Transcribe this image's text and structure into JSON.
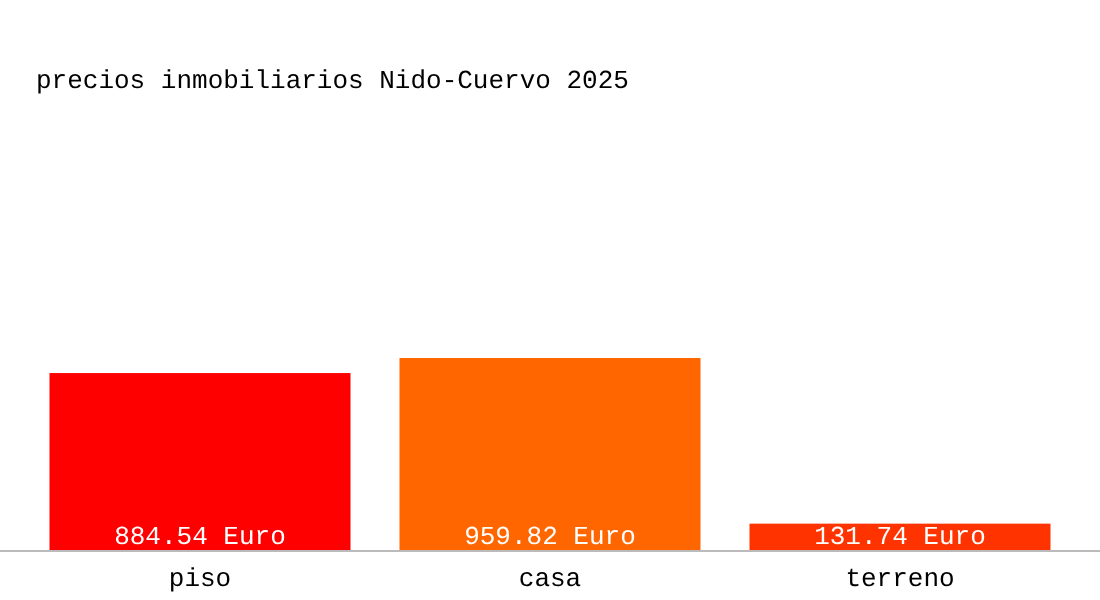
{
  "chart_data": {
    "type": "bar",
    "title": "precios inmobiliarios Nido-Cuervo 2025",
    "categories": [
      "piso",
      "casa",
      "terreno"
    ],
    "values": [
      884.54,
      959.82,
      131.74
    ],
    "colors": [
      "#ff0000",
      "#ff6600",
      "#ff3300"
    ],
    "value_labels": [
      "884.54 Euro",
      "959.82 Euro",
      "131.74 Euro"
    ]
  }
}
